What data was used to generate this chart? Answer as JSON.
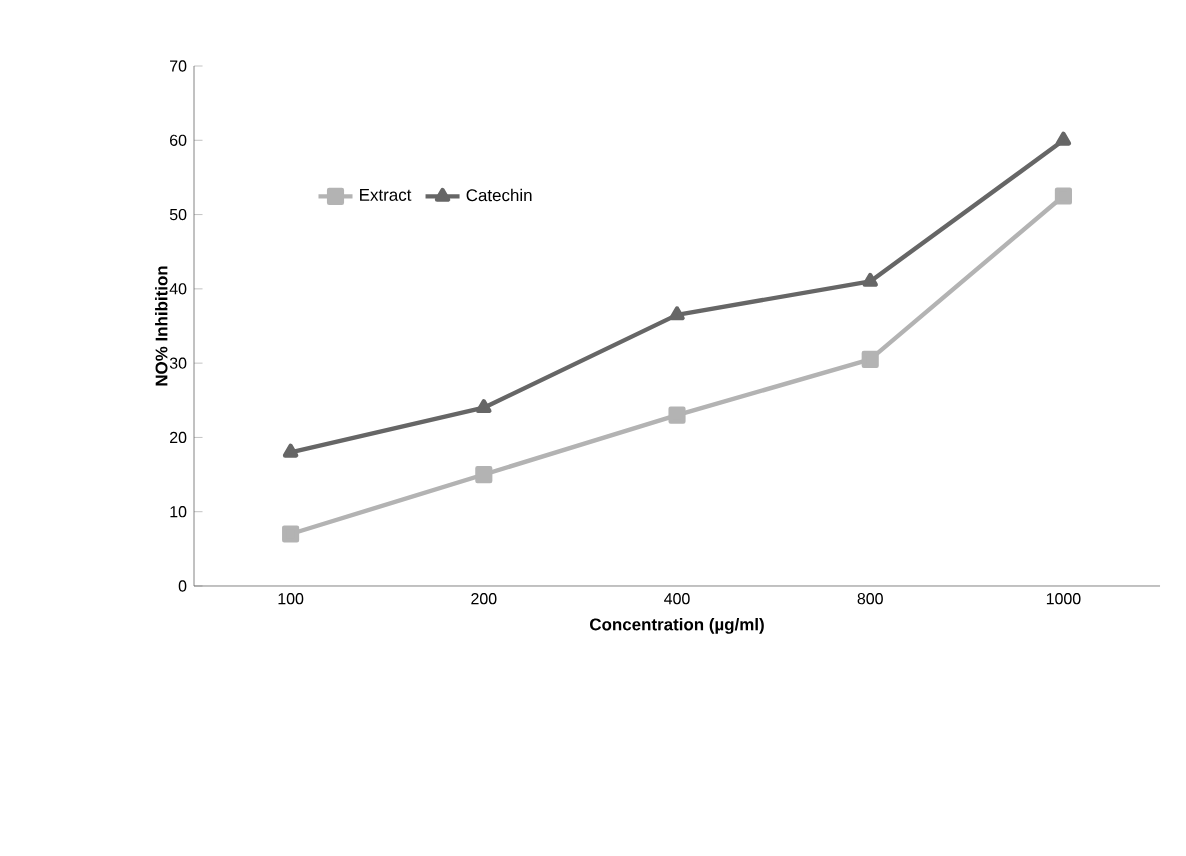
{
  "chart_data": {
    "type": "line",
    "xlabel": "Concentration (µg/ml)",
    "ylabel": "NO% Inhibition",
    "categories": [
      "100",
      "200",
      "400",
      "800",
      "1000"
    ],
    "series": [
      {
        "name": "Extract",
        "color": "#b3b3b3",
        "marker": "square",
        "values": [
          7,
          15,
          23,
          30.5,
          52.5
        ]
      },
      {
        "name": "Catechin",
        "color": "#666666",
        "marker": "triangle",
        "values": [
          18,
          24,
          36.5,
          41,
          60
        ]
      }
    ],
    "ylim": [
      0,
      70
    ],
    "yticks": [
      0,
      10,
      20,
      30,
      40,
      50,
      60,
      70
    ],
    "grid": false,
    "legend": "top left",
    "line_style": "solid"
  }
}
